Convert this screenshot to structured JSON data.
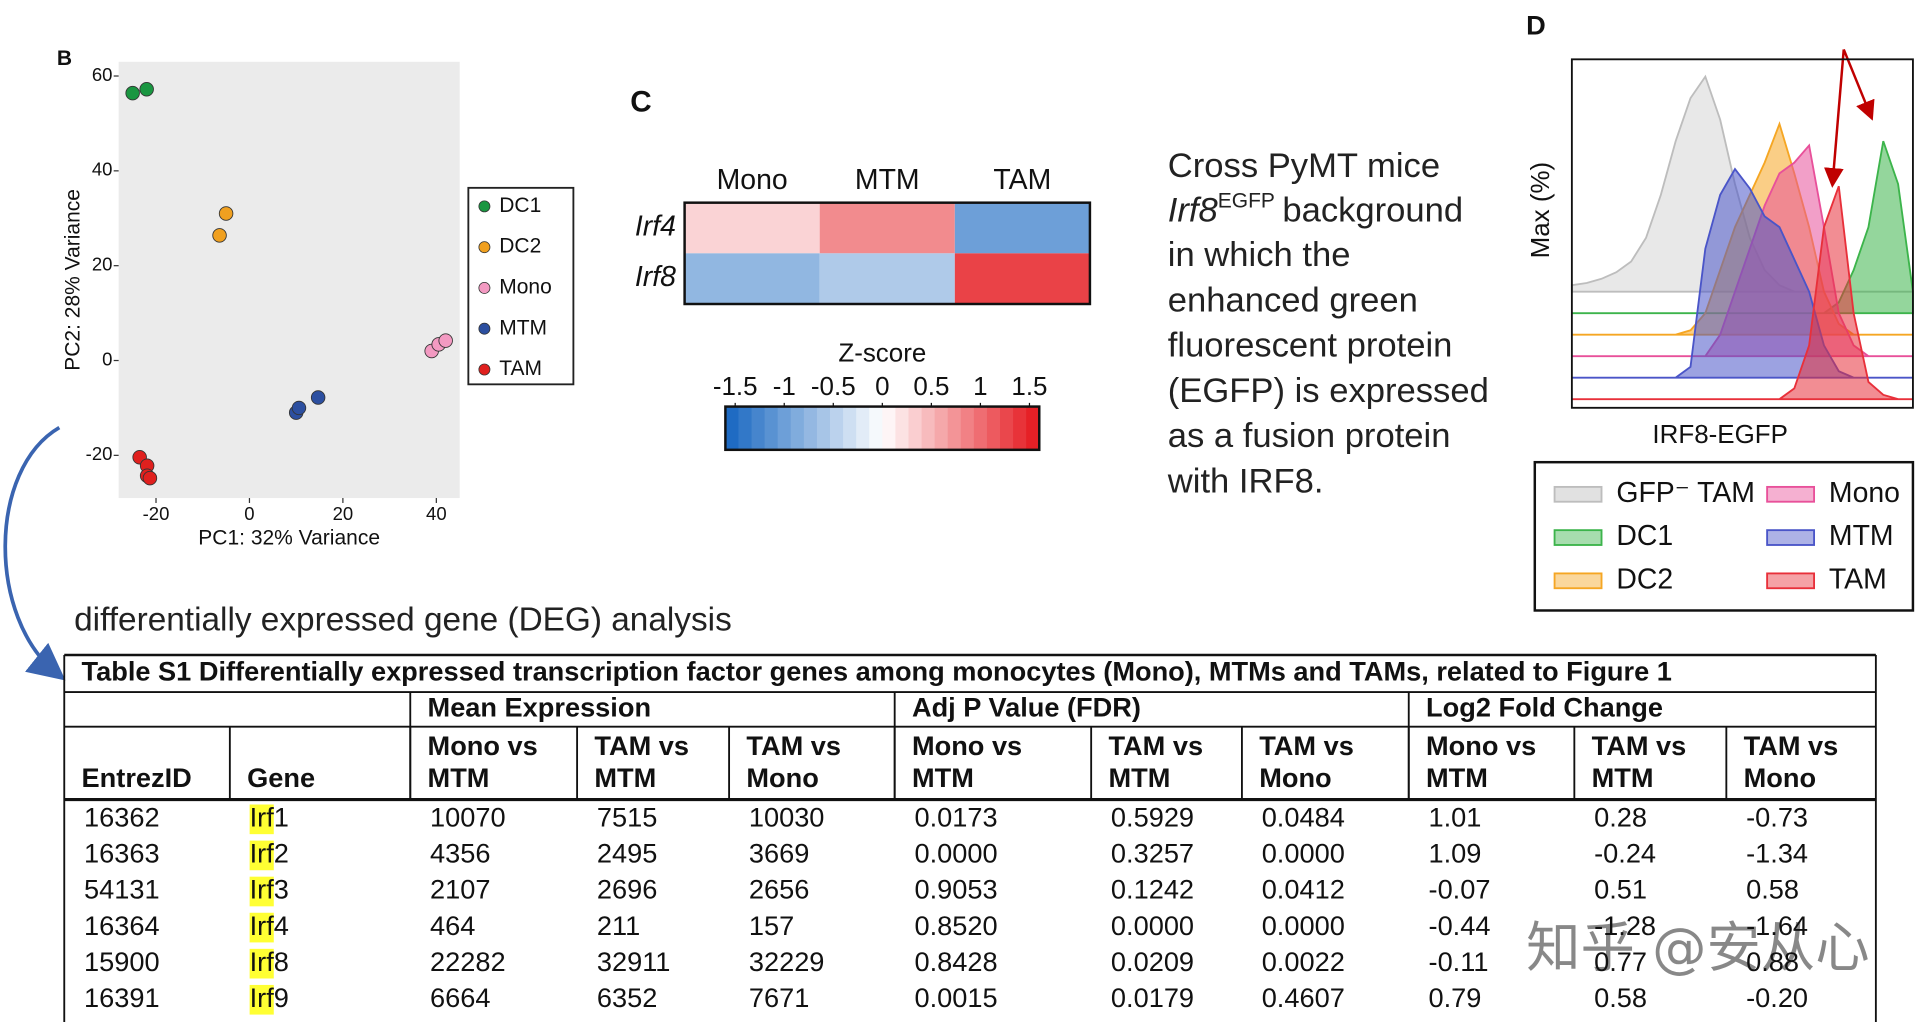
{
  "panel_labels": {
    "b": "B",
    "c": "C",
    "d": "D"
  },
  "chart_data": [
    {
      "type": "scatter",
      "x_label": "PC1: 32% Variance",
      "y_label": "PC2: 28% Variance",
      "xlim": [
        -28,
        45
      ],
      "ylim": [
        -29,
        63
      ],
      "xticks": [
        -20,
        0,
        20,
        40
      ],
      "yticks": [
        -20,
        0,
        20,
        40,
        60
      ],
      "grid": false,
      "legend": "right",
      "series": [
        {
          "name": "DC1",
          "color": "#1a9641",
          "x": [
            -25,
            -22
          ],
          "y": [
            56.4,
            57.2
          ]
        },
        {
          "name": "DC2",
          "color": "#f0a020",
          "x": [
            -5,
            -6.4
          ],
          "y": [
            31,
            26.4
          ]
        },
        {
          "name": "Mono",
          "color": "#f39ac2",
          "x": [
            39,
            40.5,
            42
          ],
          "y": [
            2,
            3.4,
            4.2
          ]
        },
        {
          "name": "MTM",
          "color": "#2c4fa0",
          "x": [
            10,
            10.6,
            14.7
          ],
          "y": [
            -11,
            -10,
            -7.8
          ]
        },
        {
          "name": "TAM",
          "color": "#e0201e",
          "x": [
            -23.5,
            -21.9,
            -21.9,
            -21.3
          ],
          "y": [
            -20.4,
            -22.2,
            -24.3,
            -24.8
          ]
        }
      ]
    },
    {
      "type": "heatmap",
      "columns": [
        "Mono",
        "MTM",
        "TAM"
      ],
      "rows": [
        "Irf4",
        "Irf8"
      ],
      "values": [
        [
          0.3,
          0.8,
          -1.0
        ],
        [
          -0.75,
          -0.55,
          1.3
        ]
      ],
      "colorbar_title": "Z-score",
      "clim": [
        -1.6,
        1.6
      ],
      "cticks": [
        -1.5,
        -1,
        -0.5,
        0,
        0.5,
        1,
        1.5
      ],
      "colormap": [
        "#1565c0",
        "#ffffff",
        "#e5161d"
      ]
    },
    {
      "type": "density",
      "x_label": "IRF8-EGFP",
      "y_label": "Max (%)",
      "series": [
        {
          "name": "GFP⁻ TAM",
          "color": "#bdbdbd",
          "values": [
            3,
            4,
            6,
            9,
            14,
            25,
            45,
            70,
            90,
            100,
            80,
            50,
            25,
            10,
            3,
            0,
            0,
            0,
            0,
            0,
            0,
            0,
            0,
            0
          ]
        },
        {
          "name": "DC1",
          "color": "#3cb44b",
          "values": [
            0,
            0,
            0,
            0,
            0,
            0,
            0,
            0,
            0,
            0,
            0,
            0,
            0,
            0,
            0,
            0,
            0,
            0,
            5,
            20,
            40,
            80,
            60,
            10
          ]
        },
        {
          "name": "DC2",
          "color": "#f5a623",
          "values": [
            0,
            0,
            0,
            0,
            0,
            0,
            0,
            0,
            2,
            10,
            30,
            50,
            65,
            80,
            98,
            75,
            50,
            20,
            5,
            0,
            0,
            0,
            0,
            0
          ]
        },
        {
          "name": "Mono",
          "color": "#e8509a",
          "values": [
            0,
            0,
            0,
            0,
            0,
            0,
            0,
            0,
            0,
            0,
            10,
            30,
            50,
            70,
            85,
            90,
            98,
            60,
            20,
            5,
            0,
            0,
            0,
            0
          ]
        },
        {
          "name": "MTM",
          "color": "#4a55c8",
          "values": [
            0,
            0,
            0,
            0,
            0,
            0,
            0,
            0,
            5,
            60,
            85,
            97,
            88,
            75,
            70,
            55,
            40,
            15,
            3,
            0,
            0,
            0,
            0,
            0
          ]
        },
        {
          "name": "TAM",
          "color": "#e8303a",
          "values": [
            0,
            0,
            0,
            0,
            0,
            0,
            0,
            0,
            0,
            0,
            0,
            0,
            0,
            0,
            0,
            5,
            25,
            80,
            99,
            40,
            8,
            2,
            0,
            0
          ]
        }
      ]
    }
  ],
  "description": {
    "line1": "Cross PyMT mice",
    "gene": "Irf8",
    "superscript": "EGFP",
    "line2_rest": "background",
    "lines": [
      "in which the",
      "enhanced green",
      "fluorescent protein",
      "(EGFP) is expressed",
      "as a fusion protein",
      "with IRF8."
    ]
  },
  "deg_heading": "differentially expressed gene (DEG) analysis",
  "table": {
    "title": "Table S1 Differentially expressed transcription factor genes among monocytes (Mono), MTMs and TAMs, related to Figure 1",
    "group_headers": [
      "Mean Expression",
      "Adj P Value (FDR)",
      "Log2 Fold Change"
    ],
    "columns": [
      [
        "EntrezID"
      ],
      [
        "Gene"
      ],
      [
        "Mono vs",
        "MTM"
      ],
      [
        "TAM vs",
        "MTM"
      ],
      [
        "TAM vs",
        "Mono"
      ],
      [
        "Mono vs",
        "MTM"
      ],
      [
        "TAM vs",
        "MTM"
      ],
      [
        "TAM vs",
        "Mono"
      ],
      [
        "Mono vs",
        "MTM"
      ],
      [
        "TAM vs",
        "MTM"
      ],
      [
        "TAM vs",
        "Mono"
      ]
    ],
    "rows": [
      [
        "16362",
        "Irf1",
        "10070",
        "7515",
        "10030",
        "0.0173",
        "0.5929",
        "0.0484",
        "1.01",
        "0.28",
        "-0.73"
      ],
      [
        "16363",
        "Irf2",
        "4356",
        "2495",
        "3669",
        "0.0000",
        "0.3257",
        "0.0000",
        "1.09",
        "-0.24",
        "-1.34"
      ],
      [
        "54131",
        "Irf3",
        "2107",
        "2696",
        "2656",
        "0.9053",
        "0.1242",
        "0.0412",
        "-0.07",
        "0.51",
        "0.58"
      ],
      [
        "16364",
        "Irf4",
        "464",
        "211",
        "157",
        "0.8520",
        "0.0000",
        "0.0000",
        "-0.44",
        "-1.28",
        "-1.64"
      ],
      [
        "15900",
        "Irf8",
        "22282",
        "32911",
        "32229",
        "0.8428",
        "0.0209",
        "0.0022",
        "-0.11",
        "0.77",
        "0.88"
      ],
      [
        "16391",
        "Irf9",
        "6664",
        "6352",
        "7671",
        "0.0015",
        "0.0179",
        "0.4607",
        "0.79",
        "0.58",
        "-0.20"
      ]
    ]
  },
  "watermark": "知乎 @安从心"
}
